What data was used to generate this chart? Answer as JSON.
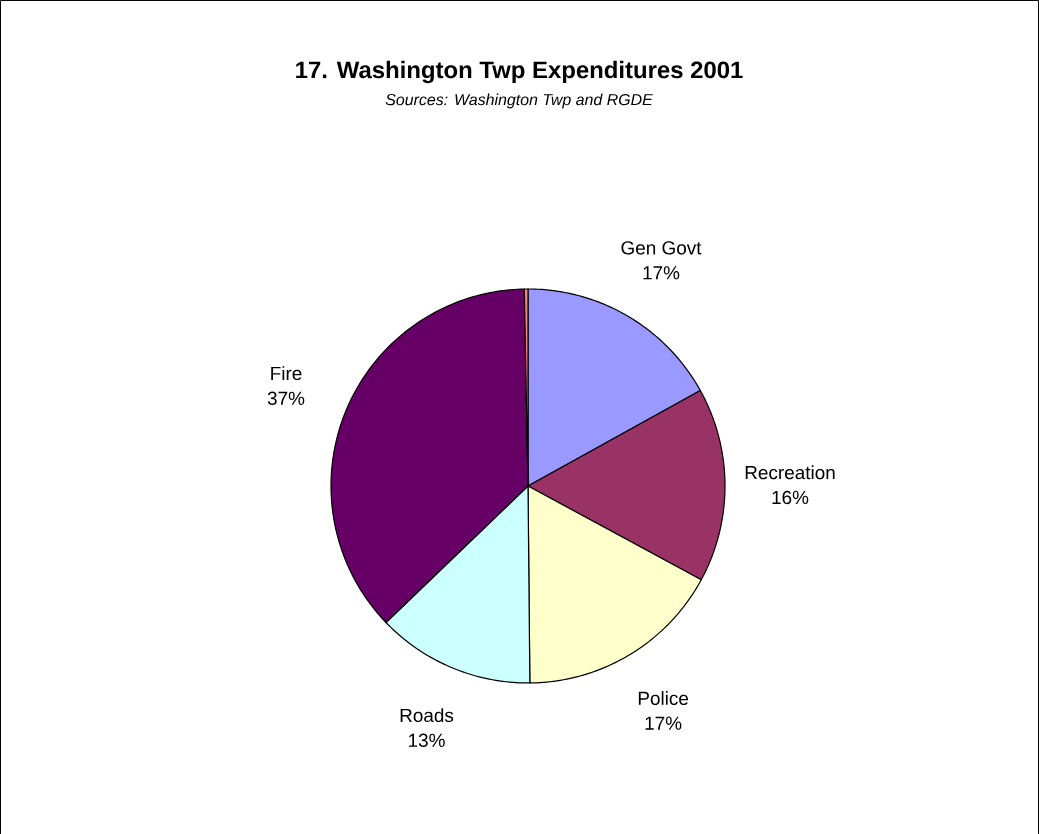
{
  "chart_data": {
    "type": "pie",
    "title": "17. Washington Twp Expenditures 2001",
    "subtitle": "Sources: Washington Twp and RGDE",
    "categories": [
      "Gen Govt",
      "Recreation",
      "Police",
      "Roads",
      "Fire",
      null
    ],
    "values": [
      17,
      16,
      17,
      13,
      37,
      0.3
    ],
    "colors": [
      "#9999ff",
      "#993366",
      "#ffffcc",
      "#ccffff",
      "#660066",
      "#ff8080"
    ],
    "value_labels": [
      "17%",
      "16%",
      "17%",
      "13%",
      "37%",
      null
    ]
  }
}
